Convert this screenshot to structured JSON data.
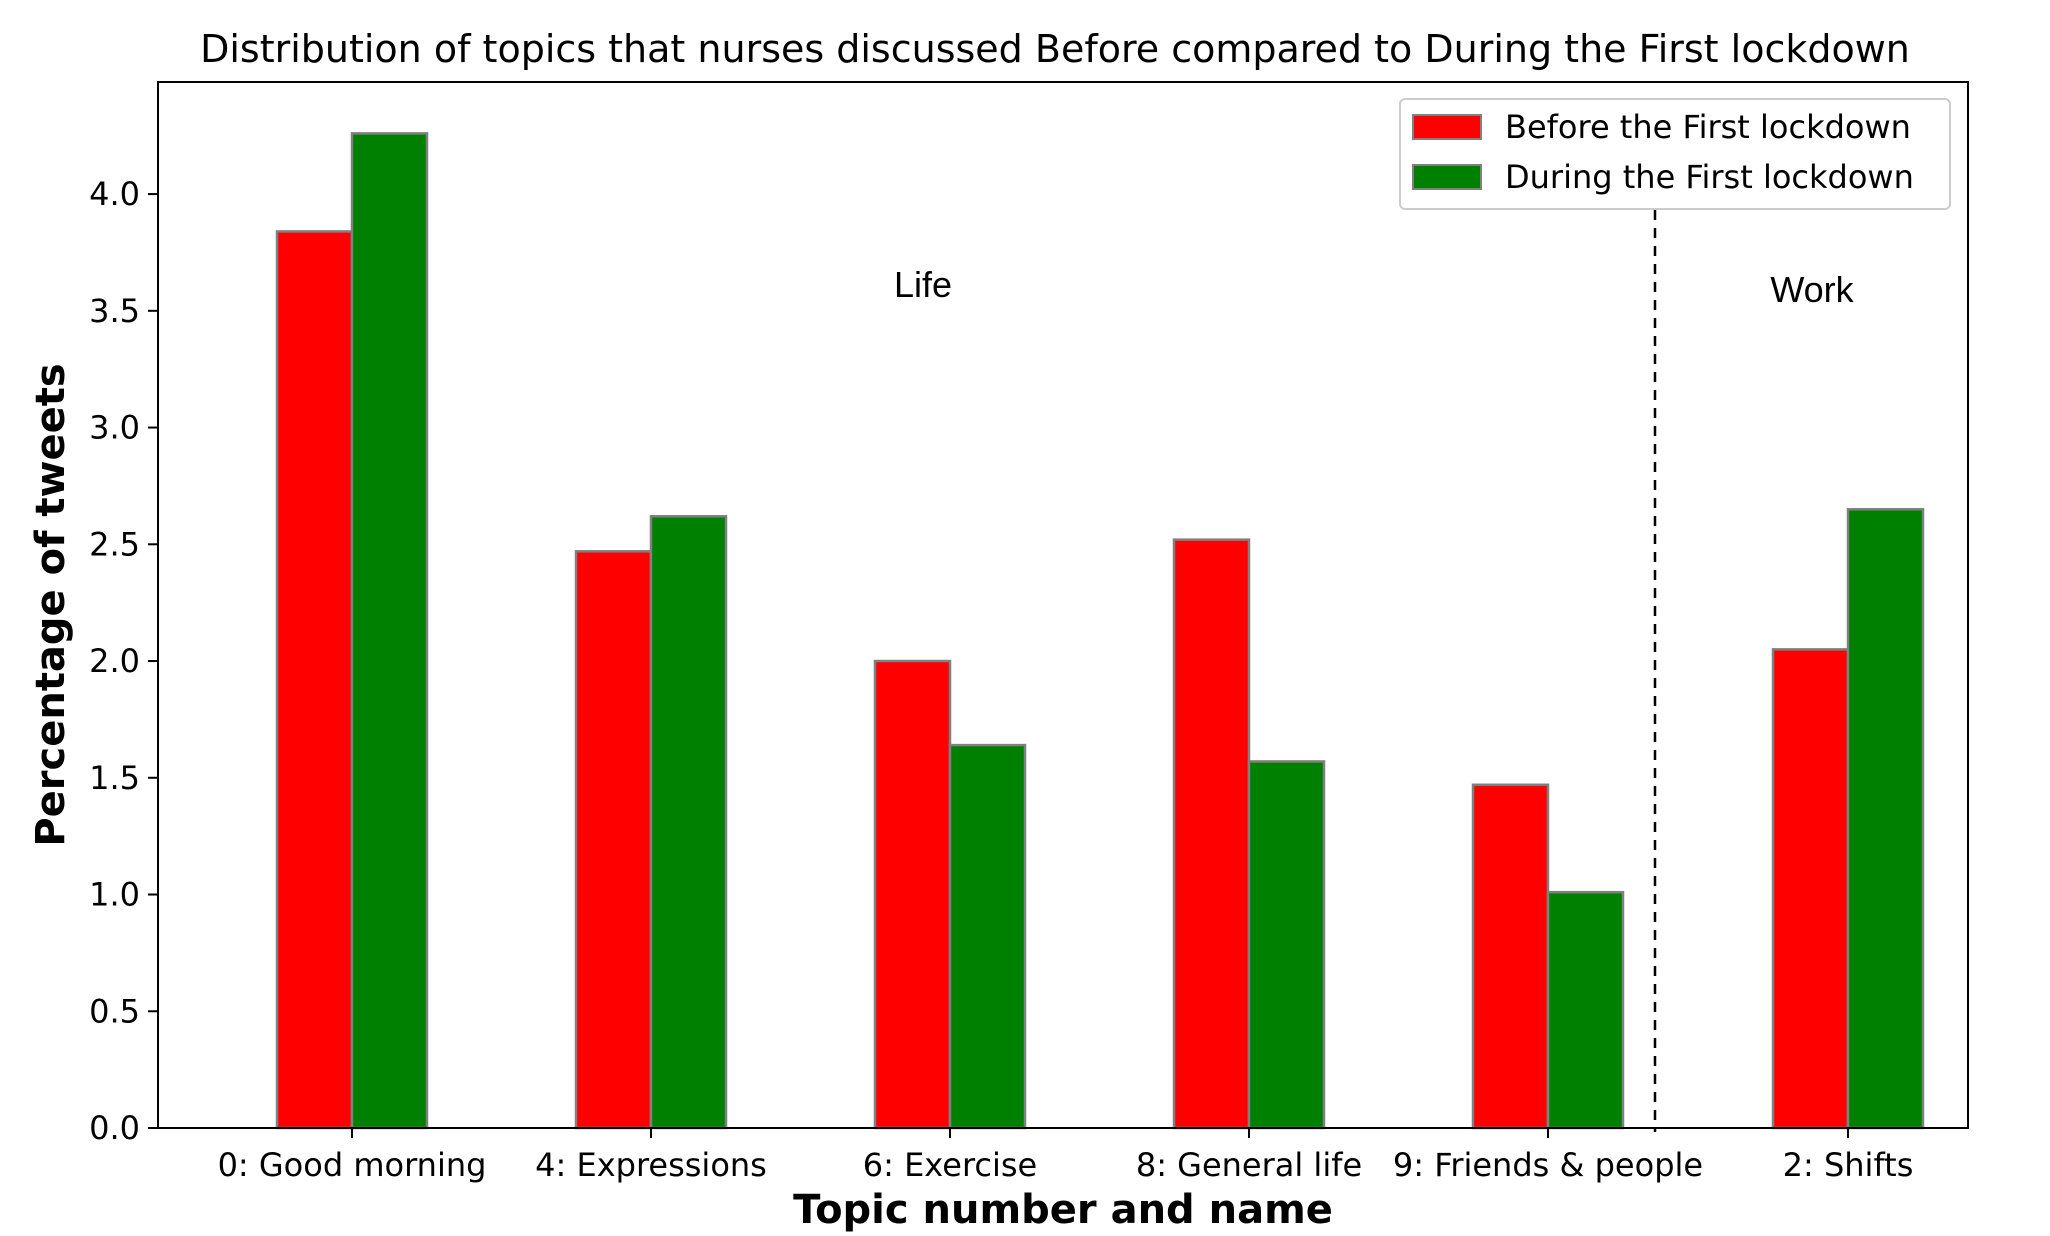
{
  "chart_data": {
    "type": "bar",
    "title": "Distribution of topics that nurses discussed Before compared to During the First lockdown",
    "xlabel": "Topic number and name",
    "ylabel": "Percentage of tweets",
    "categories": [
      "0: Good morning",
      "4: Expressions",
      "6: Exercise",
      "8: General life",
      "9: Friends & people",
      "2: Shifts"
    ],
    "series": [
      {
        "name": "Before the First lockdown",
        "color": "#ff0000",
        "values": [
          3.84,
          2.47,
          2.0,
          2.52,
          1.47,
          2.05
        ]
      },
      {
        "name": "During the First lockdown",
        "color": "#008000",
        "values": [
          4.26,
          2.62,
          1.64,
          1.57,
          1.01,
          2.65
        ]
      }
    ],
    "ylim": [
      0,
      4.48
    ],
    "yticks": [
      "0.0",
      "0.5",
      "1.0",
      "1.5",
      "2.0",
      "2.5",
      "3.0",
      "3.5",
      "4.0"
    ],
    "annotations": [
      "Life",
      "Work"
    ],
    "legend_position": "top-right",
    "grid": false,
    "divider": "dashed vertical line between '9: Friends & people' and '2: Shifts'"
  }
}
